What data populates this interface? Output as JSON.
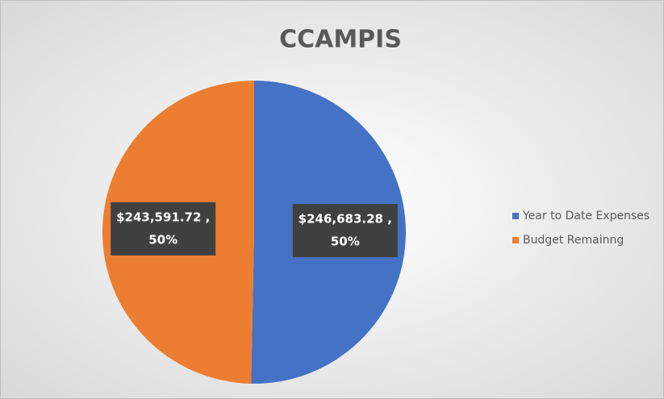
{
  "chart_data": {
    "type": "pie",
    "title": "CCAMPIS",
    "categories": [
      "Year to Date Expenses",
      "Budget Remainng"
    ],
    "values": [
      246683.28,
      243591.72
    ],
    "value_labels": [
      "$246,683.28 ,",
      "$243,591.72 ,"
    ],
    "percents": [
      50,
      50
    ],
    "percent_labels": [
      "50%",
      "50%"
    ],
    "colors": [
      "#4472c4",
      "#ed7d31"
    ],
    "legend": "right"
  }
}
